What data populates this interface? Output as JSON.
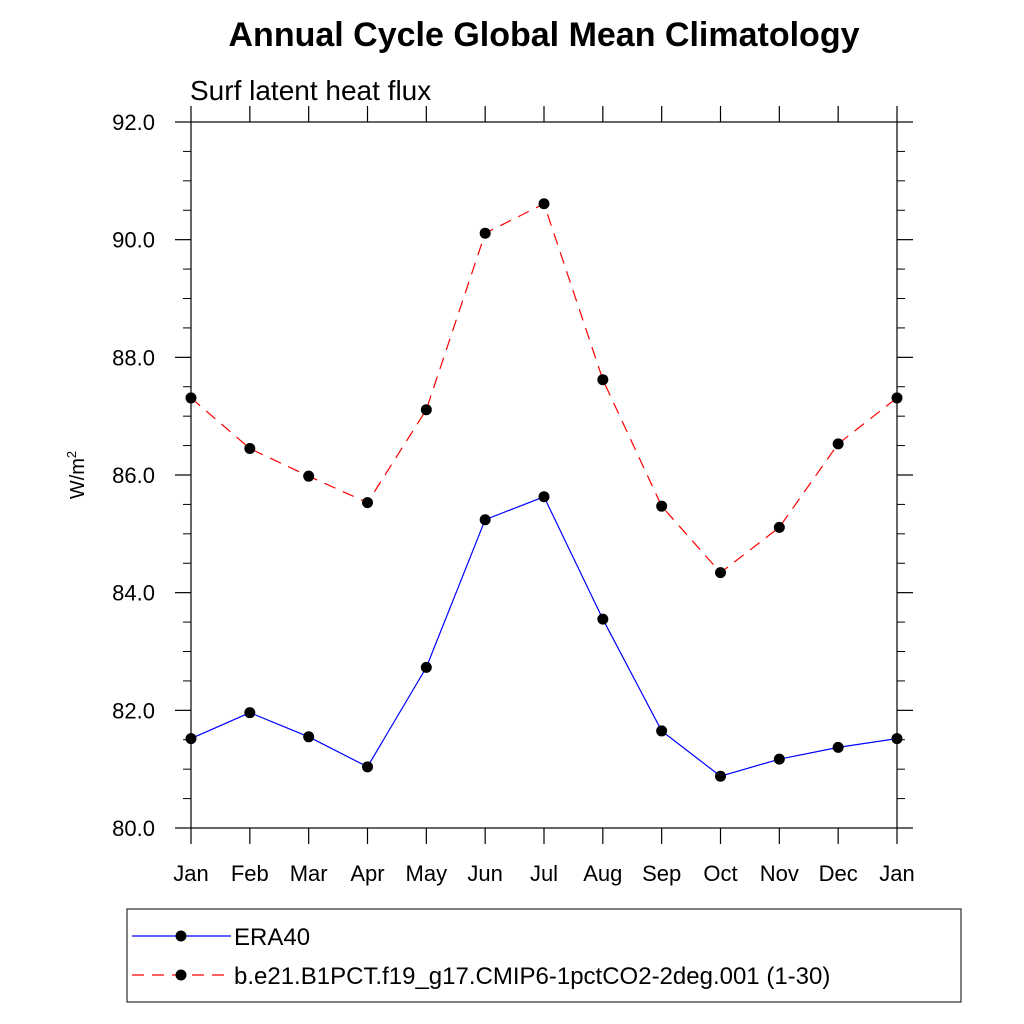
{
  "chart_data": {
    "type": "line",
    "title": "Annual Cycle Global Mean Climatology",
    "subtitle": "Surf latent heat flux",
    "ylabel": "W/m",
    "ylabel_sup": "2",
    "xlabel": "",
    "ylim": [
      80.0,
      92.0
    ],
    "yticks": [
      "80.0",
      "82.0",
      "84.0",
      "86.0",
      "88.0",
      "90.0",
      "92.0"
    ],
    "categories": [
      "Jan",
      "Feb",
      "Mar",
      "Apr",
      "May",
      "Jun",
      "Jul",
      "Aug",
      "Sep",
      "Oct",
      "Nov",
      "Dec",
      "Jan"
    ],
    "grid": false,
    "legend_position": "bottom",
    "series": [
      {
        "name": "ERA40",
        "color": "#0000ff",
        "dash": "solid",
        "values": [
          81.52,
          81.96,
          81.55,
          81.04,
          82.73,
          85.24,
          85.63,
          83.55,
          81.65,
          80.88,
          81.17,
          81.37,
          81.52
        ]
      },
      {
        "name": "b.e21.B1PCT.f19_g17.CMIP6-1pctCO2-2deg.001 (1-30)",
        "color": "#ff0000",
        "dash": "dashed",
        "values": [
          87.31,
          86.45,
          85.98,
          85.53,
          87.11,
          90.11,
          90.61,
          87.62,
          85.47,
          84.34,
          85.11,
          86.53,
          87.31
        ]
      }
    ]
  }
}
